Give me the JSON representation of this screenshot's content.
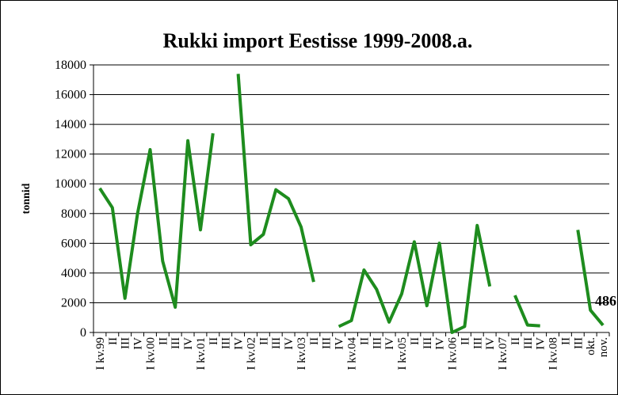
{
  "chart_data": {
    "type": "line",
    "title": "Rukki import Eestisse 1999-2008.a.",
    "xlabel": "",
    "ylabel": "tonnid",
    "ylim": [
      0,
      18000
    ],
    "y_ticks": [
      0,
      2000,
      4000,
      6000,
      8000,
      10000,
      12000,
      14000,
      16000,
      18000
    ],
    "grid": true,
    "legend": "none",
    "line_color": "#1E8C1E",
    "categories": [
      "I kv.99",
      "II",
      "III",
      "IV",
      "I kv.00",
      "II",
      "III",
      "IV",
      "I kv.01",
      "II",
      "III",
      "IV",
      "I kv.02",
      "II",
      "III",
      "IV",
      "I kv.03",
      "II",
      "III",
      "IV",
      "I kv.04",
      "II",
      "III",
      "IV",
      "I kv.05",
      "II",
      "III",
      "IV",
      "I kv.06",
      "II",
      "III",
      "IV",
      "I kv.07",
      "II",
      "III",
      "IV",
      "I kv.08",
      "II",
      "III",
      "okt.",
      "nov."
    ],
    "series": [
      {
        "values": [
          9700,
          8400,
          2300,
          8000,
          12300,
          4800,
          1700,
          12900,
          6900,
          13400,
          null,
          17400,
          5900,
          6600,
          9600,
          9000,
          7100,
          3400,
          null,
          400,
          800,
          4200,
          2900,
          700,
          2600,
          6100,
          1800,
          6000,
          0,
          400,
          7200,
          3100,
          null,
          2500,
          500,
          450,
          null,
          null,
          6900,
          1500,
          486
        ]
      }
    ],
    "data_labels": [
      {
        "category_index": 40,
        "text": "486"
      }
    ]
  }
}
